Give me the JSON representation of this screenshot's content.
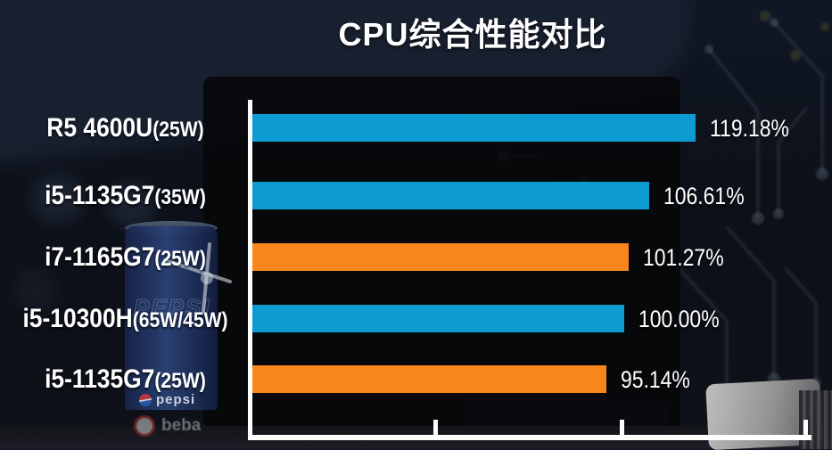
{
  "title": "CPU综合性能对比",
  "chart_data": {
    "type": "bar",
    "orientation": "horizontal",
    "title": "CPU综合性能对比",
    "categories": [
      "R5 4600U(25W)",
      "i5-1135G7(35W)",
      "i7-1165G7(25W)",
      "i5-10300H(65W/45W)",
      "i5-1135G7(25W)"
    ],
    "values": [
      119.18,
      106.61,
      101.27,
      100.0,
      95.14
    ],
    "value_labels": [
      "119.18%",
      "106.61%",
      "101.27%",
      "100.00%",
      "95.14%"
    ],
    "xlim": [
      0,
      150
    ],
    "x_ticks": [
      50,
      100,
      150
    ],
    "x_tick_labels_visible": false,
    "grid": false,
    "legend": false,
    "axis_color": "#ffffff",
    "rows": [
      {
        "cpu": "R5 4600U",
        "power": "(25W)",
        "value": 119.18,
        "value_label": "119.18%",
        "color": "#0e9bd2"
      },
      {
        "cpu": "i5-1135G7",
        "power": "(35W)",
        "value": 106.61,
        "value_label": "106.61%",
        "color": "#0e9bd2"
      },
      {
        "cpu": "i7-1165G7",
        "power": "(25W)",
        "value": 101.27,
        "value_label": "101.27%",
        "color": "#f9861d"
      },
      {
        "cpu": "i5-10300H",
        "power": "(65W/45W)",
        "value": 100.0,
        "value_label": "100.00%",
        "color": "#0e9bd2"
      },
      {
        "cpu": "i5-1135G7",
        "power": "(25W)",
        "value": 95.14,
        "value_label": "95.14%",
        "color": "#f9861d"
      }
    ]
  },
  "colors": {
    "blue_bar": "#0e9bd2",
    "orange_bar": "#f9861d",
    "axis": "#ffffff",
    "text": "#ffffff"
  },
  "background": {
    "pepsi_outline_word": "PEPSI",
    "pepsi_brand_word": "pepsi",
    "reflection_word": "beba",
    "decor": [
      "circuit-traces",
      "laptop-silhouette",
      "pepsi-can",
      "power-adapter"
    ]
  }
}
